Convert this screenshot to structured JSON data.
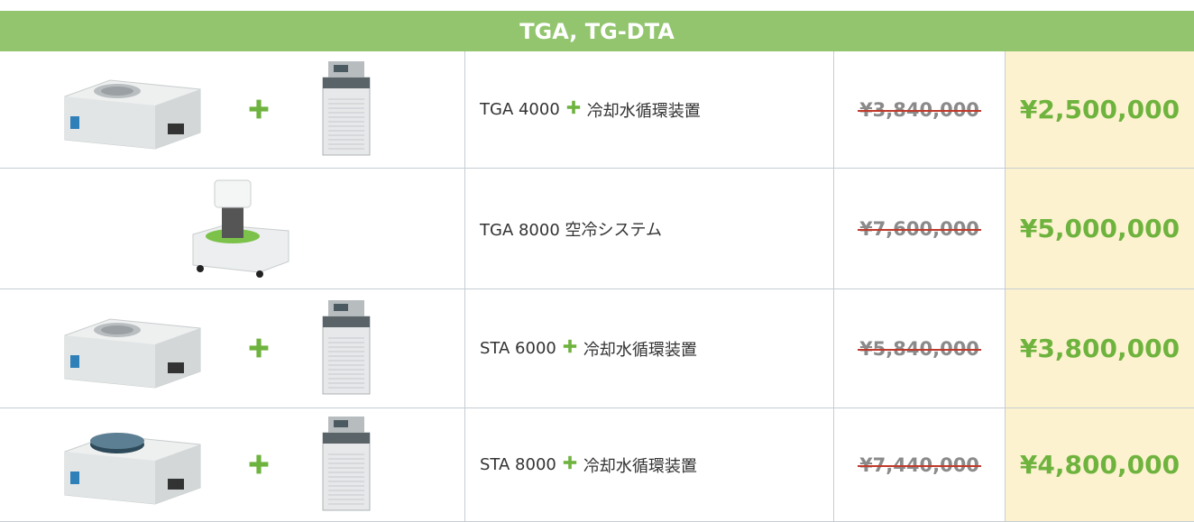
{
  "header": {
    "title": "TGA, TG-DTA"
  },
  "table": {
    "rows": [
      {
        "product": "TGA 4000",
        "accessory": "冷却水循環装置",
        "list_price": "¥3,840,000",
        "sale_price": "¥2,500,000"
      },
      {
        "product": "TGA 8000 空冷システム",
        "list_price": "¥7,600,000",
        "sale_price": "¥5,000,000"
      },
      {
        "product": "STA 6000",
        "accessory": "冷却水循環装置",
        "list_price": "¥5,840,000",
        "sale_price": "¥3,800,000"
      },
      {
        "product": "STA 8000",
        "accessory": "冷却水循環装置",
        "list_price": "¥7,440,000",
        "sale_price": "¥4,800,000"
      }
    ]
  }
}
